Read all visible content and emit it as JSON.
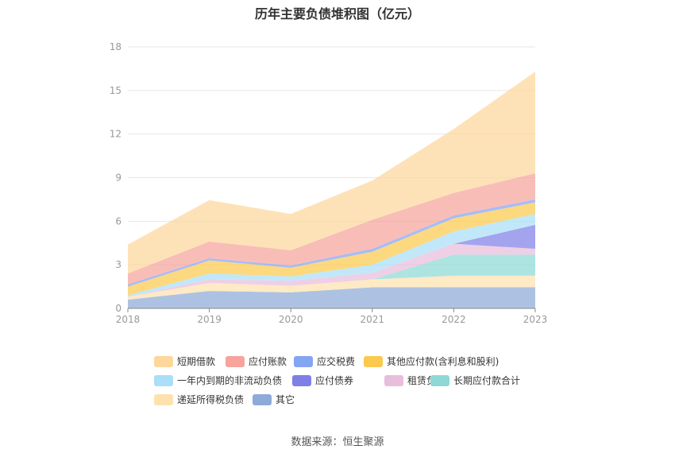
{
  "title": "历年主要负债堆积图（亿元）",
  "source_label": "数据来源：",
  "source_name": "恒生聚源",
  "chart_data": {
    "type": "area",
    "stacked": true,
    "x": [
      "2018",
      "2019",
      "2020",
      "2021",
      "2022",
      "2023"
    ],
    "ylim": [
      0,
      18
    ],
    "yticks": [
      0,
      3,
      6,
      9,
      12,
      15,
      18
    ],
    "grid": true,
    "legend_position": "bottom",
    "series": [
      {
        "name": "其它",
        "color": "#8eaad8",
        "values": [
          0.6,
          1.2,
          1.1,
          1.45,
          1.45,
          1.45
        ]
      },
      {
        "name": "递延所得税负债",
        "color": "#fde2ad",
        "values": [
          0.2,
          0.55,
          0.45,
          0.55,
          0.8,
          0.8
        ]
      },
      {
        "name": "长期应付款合计",
        "color": "#8ed9d6",
        "values": [
          0.0,
          0.0,
          0.0,
          0.0,
          1.45,
          1.45
        ]
      },
      {
        "name": "租赁负债",
        "color": "#e9bddc",
        "values": [
          0.0,
          0.25,
          0.35,
          0.45,
          0.75,
          0.4
        ]
      },
      {
        "name": "应付债券",
        "color": "#7f7fe8",
        "values": [
          0.0,
          0.0,
          0.0,
          0.0,
          0.0,
          1.65
        ]
      },
      {
        "name": "一年内到期的非流动负债",
        "color": "#a9dff7",
        "values": [
          0.1,
          0.4,
          0.3,
          0.55,
          0.85,
          0.75
        ]
      },
      {
        "name": "其他应付款(含利息和股利)",
        "color": "#fbc94e",
        "values": [
          0.6,
          0.9,
          0.6,
          0.9,
          0.9,
          0.8
        ]
      },
      {
        "name": "应交税费",
        "color": "#84a4f4",
        "values": [
          0.15,
          0.15,
          0.15,
          0.2,
          0.2,
          0.2
        ]
      },
      {
        "name": "应付账款",
        "color": "#f6a49c",
        "values": [
          0.75,
          1.15,
          1.05,
          2.0,
          1.55,
          1.8
        ]
      },
      {
        "name": "短期借款",
        "color": "#fdd79b",
        "values": [
          2.0,
          2.85,
          2.5,
          2.7,
          4.4,
          7.0
        ]
      }
    ]
  },
  "legend": [
    {
      "label": "短期借款",
      "color": "#fdd79b"
    },
    {
      "label": "应付账款",
      "color": "#f6a49c"
    },
    {
      "label": "应交税费",
      "color": "#84a4f4"
    },
    {
      "label": "其他应付款(含利息和股利)",
      "color": "#fbc94e"
    },
    {
      "label": "一年内到期的非流动负债",
      "color": "#a9dff7"
    },
    {
      "label": "应付债券",
      "color": "#7f7fe8"
    },
    {
      "label": "租赁负债",
      "color": "#e9bddc"
    },
    {
      "label": "长期应付款合计",
      "color": "#8ed9d6"
    },
    {
      "label": "递延所得税负债",
      "color": "#fde2ad"
    },
    {
      "label": "其它",
      "color": "#8eaad8"
    }
  ]
}
